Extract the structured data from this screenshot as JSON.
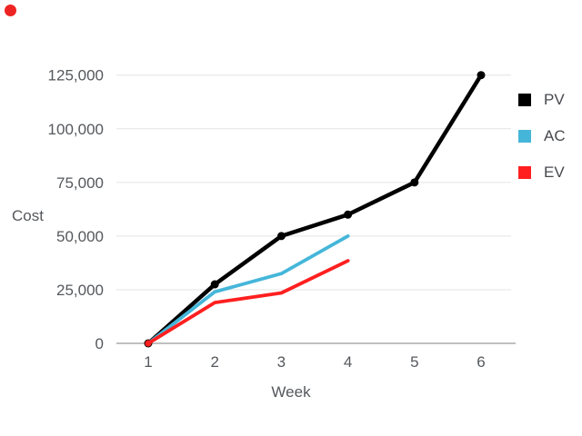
{
  "chart_data": {
    "type": "line",
    "title": "",
    "xlabel": "Week",
    "ylabel": "Cost",
    "x_ticks": [
      "1",
      "2",
      "3",
      "4",
      "5",
      "6"
    ],
    "y_ticks": [
      "0",
      "25,000",
      "50,000",
      "75,000",
      "100,000",
      "125,000"
    ],
    "y_tick_values": [
      0,
      25000,
      50000,
      75000,
      100000,
      125000
    ],
    "ylim": [
      0,
      125000
    ],
    "xlim": [
      1,
      6
    ],
    "grid": "horizontal",
    "legend_position": "right",
    "series": [
      {
        "name": "PV",
        "color": "#000000",
        "x": [
          1,
          2,
          3,
          4,
          5,
          6
        ],
        "values": [
          0,
          27500,
          50000,
          60000,
          75000,
          125000
        ],
        "markers": true
      },
      {
        "name": "AC",
        "color": "#45b6d9",
        "x": [
          1,
          2,
          3,
          4
        ],
        "values": [
          0,
          24000,
          32500,
          50000
        ],
        "markers": false
      },
      {
        "name": "EV",
        "color": "#ff1f1f",
        "x": [
          1,
          2,
          3,
          4
        ],
        "values": [
          0,
          19000,
          23500,
          38500
        ],
        "markers": false
      }
    ],
    "origin_marker_color": "#ff1f1f"
  },
  "legend": {
    "items": [
      {
        "label": "PV",
        "color": "#000000"
      },
      {
        "label": "AC",
        "color": "#45b6d9"
      },
      {
        "label": "EV",
        "color": "#ff1f1f"
      }
    ]
  },
  "styles": {
    "grid_color": "#e4e4e4",
    "axis_line_color": "#999999",
    "tick_label_color": "#55585c"
  },
  "annotations": {
    "click_indicator_color": "#ee2424"
  }
}
